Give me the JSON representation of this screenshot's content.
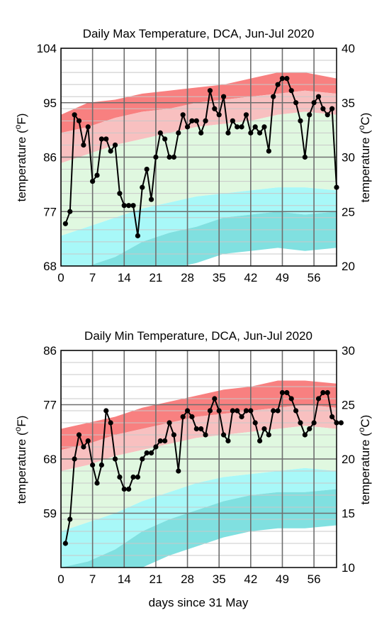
{
  "chart_data": [
    {
      "type": "line",
      "title": "Daily Max Temperature, DCA, Jun-Jul 2020",
      "xlabel": "",
      "ylabel_left_text": "temperature (",
      "ylabel_left_unit": "F)",
      "ylabel_right_text": "temperature (",
      "ylabel_right_unit": "C)",
      "degree_mark": "o",
      "xlim": [
        0,
        61
      ],
      "ylim": [
        68,
        104
      ],
      "xticks": [
        0,
        7,
        14,
        21,
        28,
        35,
        42,
        49,
        56
      ],
      "yticks_left": [
        68,
        77,
        86,
        95,
        104
      ],
      "yticks_right": [
        20,
        25,
        30,
        35,
        40
      ],
      "y_right_range": [
        20,
        40
      ],
      "grid": true,
      "colors": {
        "record_high": "#f88080",
        "high_normal": "#f8c0c0",
        "normal": "#e0f8e0",
        "low_normal": "#a8f8f8",
        "record_low": "#80e0e0",
        "series": "#000000"
      },
      "series": [
        {
          "values": [
            75,
            77,
            93,
            92,
            88,
            91,
            82,
            83,
            89,
            89,
            87,
            88,
            80,
            78,
            78,
            78,
            73,
            81,
            84,
            79,
            86,
            90,
            89,
            86,
            86,
            90,
            93,
            91,
            92,
            92,
            90,
            92,
            97,
            94,
            93,
            96,
            90,
            92,
            91,
            91,
            93,
            90,
            91,
            90,
            91,
            87,
            96,
            98,
            99,
            99,
            97,
            95,
            92,
            86,
            93,
            95,
            96,
            94,
            93,
            94,
            81
          ]
        }
      ],
      "bands": {
        "x": [
          0,
          6,
          12,
          18,
          24,
          30,
          36,
          42,
          48,
          54,
          61
        ],
        "record_high_upper": [
          93,
          95,
          95.5,
          96.5,
          97,
          97.5,
          98,
          99,
          100,
          100,
          99
        ],
        "high_normal_upper": [
          90,
          91,
          92.5,
          93.5,
          94,
          95,
          95.5,
          96,
          96.5,
          97,
          96.5
        ],
        "normal_upper": [
          85,
          86.5,
          88,
          89,
          90,
          91,
          91.5,
          92,
          93,
          93.5,
          93
        ],
        "normal_lower": [
          73,
          74.5,
          76,
          77.5,
          78.5,
          79.5,
          80,
          80.5,
          81,
          81,
          80.5
        ],
        "low_normal_lower": [
          68,
          68,
          69.5,
          72,
          73.5,
          74.5,
          76,
          76.5,
          77,
          76.5,
          77
        ]
      }
    },
    {
      "type": "line",
      "title": "Daily Min Temperature, DCA, Jun-Jul 2020",
      "xlabel": "days since 31 May",
      "ylabel_left_text": "temperature (",
      "ylabel_left_unit": "F)",
      "ylabel_right_text": "temperature (",
      "ylabel_right_unit": "C)",
      "degree_mark": "o",
      "xlim": [
        0,
        61
      ],
      "ylim": [
        50,
        86
      ],
      "xticks": [
        0,
        7,
        14,
        21,
        28,
        35,
        42,
        49,
        56
      ],
      "yticks_left": [
        59,
        68,
        77,
        86
      ],
      "yticks_right": [
        10,
        15,
        20,
        25,
        30
      ],
      "y_right_range": [
        10,
        30
      ],
      "grid": true,
      "colors": {
        "record_high": "#f88080",
        "high_normal": "#f8c0c0",
        "normal": "#e0f8e0",
        "low_normal": "#a8f8f8",
        "record_low": "#80e0e0",
        "series": "#000000"
      },
      "series": [
        {
          "values": [
            54,
            58,
            68,
            72,
            70,
            71,
            67,
            64,
            67,
            76,
            74,
            68,
            65,
            63,
            63,
            65,
            65,
            68,
            69,
            69,
            70,
            71,
            71,
            74,
            72,
            66,
            75,
            76,
            75,
            73,
            73,
            72,
            76,
            78,
            76,
            72,
            71,
            76,
            76,
            75,
            76,
            76,
            74,
            71,
            73,
            72,
            76,
            76,
            79,
            79,
            78,
            76,
            74,
            72,
            73,
            74,
            78,
            79,
            79,
            75,
            74,
            74
          ]
        }
      ],
      "bands": {
        "x": [
          0,
          6,
          12,
          18,
          24,
          30,
          36,
          42,
          48,
          54,
          61
        ],
        "record_high_upper": [
          73,
          74,
          75,
          76.5,
          77.5,
          78.5,
          79.5,
          80,
          81,
          81,
          80.5
        ],
        "high_normal_upper": [
          69.5,
          70.5,
          72,
          73,
          74,
          75,
          75.5,
          76,
          76.5,
          77,
          76.5
        ],
        "normal_upper": [
          66,
          67,
          68.5,
          69.5,
          70.5,
          71.5,
          72,
          72.5,
          73,
          73.5,
          73
        ],
        "normal_lower": [
          56,
          57.5,
          59,
          61,
          62.5,
          64,
          65,
          65.5,
          66,
          66.5,
          66
        ],
        "low_normal_lower": [
          50,
          51,
          53,
          56,
          58,
          59.5,
          61,
          62,
          62.5,
          62.5,
          63
        ]
      }
    }
  ]
}
